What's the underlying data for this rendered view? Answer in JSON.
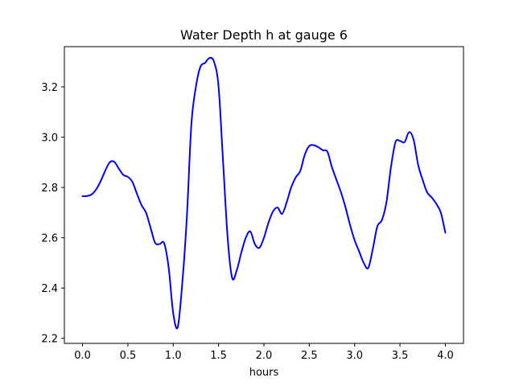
{
  "chart_data": {
    "type": "line",
    "title": "Water Depth h at gauge 6",
    "xlabel": "hours",
    "ylabel": "",
    "xlim": [
      -0.2,
      4.2
    ],
    "ylim": [
      2.18,
      3.36
    ],
    "grid": false,
    "xticks": [
      0.0,
      0.5,
      1.0,
      1.5,
      2.0,
      2.5,
      3.0,
      3.5,
      4.0
    ],
    "xtick_labels": [
      "0.0",
      "0.5",
      "1.0",
      "1.5",
      "2.0",
      "2.5",
      "3.0",
      "3.5",
      "4.0"
    ],
    "yticks": [
      2.2,
      2.4,
      2.6,
      2.8,
      3.0,
      3.2
    ],
    "ytick_labels": [
      "2.2",
      "2.4",
      "2.6",
      "2.8",
      "3.0",
      "3.2"
    ],
    "series": [
      {
        "color": "#0000ff",
        "x": [
          0.0,
          0.05,
          0.1,
          0.15,
          0.2,
          0.25,
          0.3,
          0.35,
          0.4,
          0.45,
          0.5,
          0.55,
          0.6,
          0.65,
          0.7,
          0.75,
          0.8,
          0.85,
          0.9,
          0.95,
          1.0,
          1.05,
          1.1,
          1.15,
          1.2,
          1.25,
          1.3,
          1.35,
          1.4,
          1.45,
          1.5,
          1.55,
          1.6,
          1.65,
          1.7,
          1.75,
          1.8,
          1.85,
          1.9,
          1.95,
          2.0,
          2.05,
          2.1,
          2.15,
          2.2,
          2.25,
          2.3,
          2.35,
          2.4,
          2.45,
          2.5,
          2.55,
          2.6,
          2.65,
          2.7,
          2.75,
          2.8,
          2.85,
          2.9,
          2.95,
          3.0,
          3.05,
          3.1,
          3.15,
          3.2,
          3.25,
          3.3,
          3.35,
          3.4,
          3.45,
          3.5,
          3.55,
          3.6,
          3.65,
          3.7,
          3.75,
          3.8,
          3.85,
          3.9,
          3.95,
          4.0
        ],
        "y": [
          2.765,
          2.766,
          2.772,
          2.792,
          2.825,
          2.866,
          2.9,
          2.902,
          2.875,
          2.85,
          2.842,
          2.822,
          2.775,
          2.73,
          2.7,
          2.64,
          2.58,
          2.575,
          2.578,
          2.48,
          2.3,
          2.245,
          2.42,
          2.68,
          3.05,
          3.2,
          3.28,
          3.295,
          3.315,
          3.3,
          3.2,
          2.9,
          2.6,
          2.44,
          2.47,
          2.54,
          2.6,
          2.625,
          2.575,
          2.56,
          2.6,
          2.66,
          2.705,
          2.72,
          2.695,
          2.74,
          2.8,
          2.84,
          2.865,
          2.93,
          2.965,
          2.968,
          2.96,
          2.948,
          2.942,
          2.88,
          2.83,
          2.78,
          2.72,
          2.65,
          2.59,
          2.545,
          2.5,
          2.48,
          2.555,
          2.645,
          2.67,
          2.74,
          2.88,
          2.98,
          2.985,
          2.98,
          3.02,
          2.99,
          2.89,
          2.83,
          2.78,
          2.76,
          2.735,
          2.7,
          2.62
        ]
      }
    ]
  }
}
